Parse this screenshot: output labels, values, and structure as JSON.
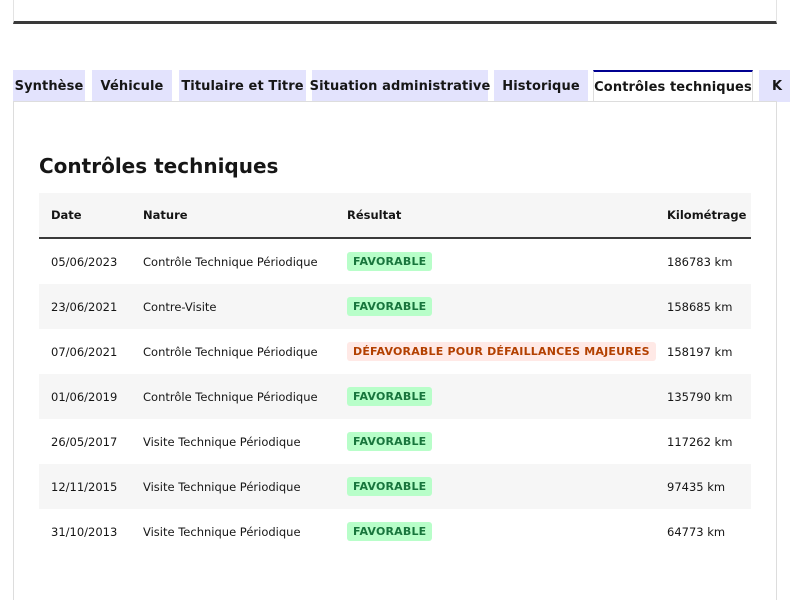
{
  "tabs": [
    {
      "label": "Synthèse",
      "active": false
    },
    {
      "label": "Véhicule",
      "active": false
    },
    {
      "label": "Titulaire et Titre",
      "active": false
    },
    {
      "label": "Situation administrative",
      "active": false
    },
    {
      "label": "Historique",
      "active": false
    },
    {
      "label": "Contrôles techniques",
      "active": true
    },
    {
      "label": "K",
      "active": false
    }
  ],
  "section": {
    "title": "Contrôles techniques"
  },
  "table": {
    "headers": {
      "date": "Date",
      "nature": "Nature",
      "result": "Résultat",
      "km": "Kilométrage"
    },
    "rows": [
      {
        "date": "05/06/2023",
        "nature": "Contrôle Technique Périodique",
        "result": "FAVORABLE",
        "status": "ok",
        "km": "186783 km"
      },
      {
        "date": "23/06/2021",
        "nature": "Contre-Visite",
        "result": "FAVORABLE",
        "status": "ok",
        "km": "158685 km"
      },
      {
        "date": "07/06/2021",
        "nature": "Contrôle Technique Périodique",
        "result": "DÉFAVORABLE POUR DÉFAILLANCES MAJEURES",
        "status": "ko",
        "km": "158197 km"
      },
      {
        "date": "01/06/2019",
        "nature": "Contrôle Technique Périodique",
        "result": "FAVORABLE",
        "status": "ok",
        "km": "135790 km"
      },
      {
        "date": "26/05/2017",
        "nature": "Visite Technique Périodique",
        "result": "FAVORABLE",
        "status": "ok",
        "km": "117262 km"
      },
      {
        "date": "12/11/2015",
        "nature": "Visite Technique Périodique",
        "result": "FAVORABLE",
        "status": "ok",
        "km": "97435 km"
      },
      {
        "date": "31/10/2013",
        "nature": "Visite Technique Périodique",
        "result": "FAVORABLE",
        "status": "ok",
        "km": "64773 km"
      }
    ]
  },
  "colors": {
    "accent": "#000091",
    "tab_bg": "#e3e3fd",
    "success_bg": "#b8fec9",
    "success_text": "#18753c",
    "error_bg": "#ffe9e6",
    "error_text": "#b34000"
  }
}
